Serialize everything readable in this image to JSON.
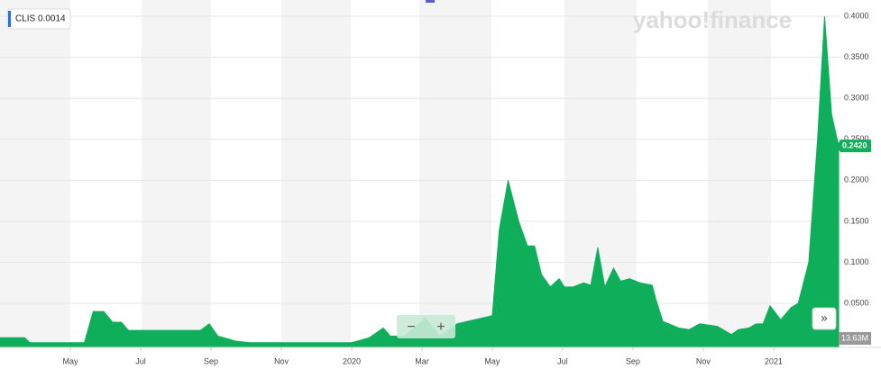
{
  "chart_data": {
    "type": "area",
    "legend_label": "CLIS 0.0014",
    "watermark": "yahoo!finance",
    "current_label": "0.2420",
    "current_value": 0.242,
    "volume_label": "13.63M",
    "color": "#0fae5a",
    "xlim": [
      0,
      23.9
    ],
    "xticks": [
      {
        "value": 2,
        "label": "May"
      },
      {
        "value": 4,
        "label": "Jul"
      },
      {
        "value": 6,
        "label": "Sep"
      },
      {
        "value": 8,
        "label": "Nov"
      },
      {
        "value": 10,
        "label": "2020"
      },
      {
        "value": 12,
        "label": "Mar"
      },
      {
        "value": 14,
        "label": "May"
      },
      {
        "value": 16,
        "label": "Jul"
      },
      {
        "value": 18,
        "label": "Sep"
      },
      {
        "value": 20,
        "label": "Nov"
      },
      {
        "value": 22,
        "label": "2021"
      }
    ],
    "ylim": [
      0,
      0.41
    ],
    "yticks": [
      {
        "value": 0.05,
        "label": "0.0500"
      },
      {
        "value": 0.1,
        "label": "0.1000"
      },
      {
        "value": 0.15,
        "label": "0.1500"
      },
      {
        "value": 0.2,
        "label": "0.2000"
      },
      {
        "value": 0.25,
        "label": "0.2500"
      },
      {
        "value": 0.3,
        "label": "0.3000"
      },
      {
        "value": 0.35,
        "label": "0.3500"
      },
      {
        "value": 0.4,
        "label": "0.4000"
      }
    ],
    "grid": true,
    "x": [
      0,
      0.7,
      0.85,
      2.4,
      2.65,
      2.95,
      3.2,
      3.45,
      3.65,
      5.7,
      5.95,
      6.2,
      6.7,
      7.1,
      10.0,
      10.5,
      10.9,
      11.1,
      11.5,
      12.1,
      12.5,
      13.0,
      13.5,
      14.0,
      14.2,
      14.45,
      14.75,
      15.0,
      15.2,
      15.4,
      15.65,
      15.9,
      16.05,
      16.3,
      16.6,
      16.8,
      17.0,
      17.2,
      17.45,
      17.65,
      17.9,
      18.2,
      18.45,
      18.55,
      18.65,
      18.85,
      19.3,
      19.6,
      19.9,
      20.4,
      20.8,
      21.0,
      21.3,
      21.5,
      21.7,
      21.9,
      22.2,
      22.5,
      22.7,
      23.0,
      23.25,
      23.45,
      23.65,
      23.85
    ],
    "values": [
      0.008,
      0.008,
      0.002,
      0.002,
      0.04,
      0.04,
      0.027,
      0.027,
      0.017,
      0.017,
      0.025,
      0.01,
      0.004,
      0.002,
      0.002,
      0.008,
      0.02,
      0.01,
      0.01,
      0.032,
      0.01,
      0.025,
      0.03,
      0.035,
      0.14,
      0.2,
      0.15,
      0.12,
      0.12,
      0.085,
      0.07,
      0.08,
      0.07,
      0.07,
      0.075,
      0.072,
      0.118,
      0.07,
      0.093,
      0.077,
      0.08,
      0.075,
      0.073,
      0.072,
      0.055,
      0.028,
      0.02,
      0.018,
      0.025,
      0.022,
      0.012,
      0.018,
      0.02,
      0.025,
      0.025,
      0.047,
      0.03,
      0.045,
      0.05,
      0.1,
      0.25,
      0.4,
      0.28,
      0.242
    ]
  }
}
